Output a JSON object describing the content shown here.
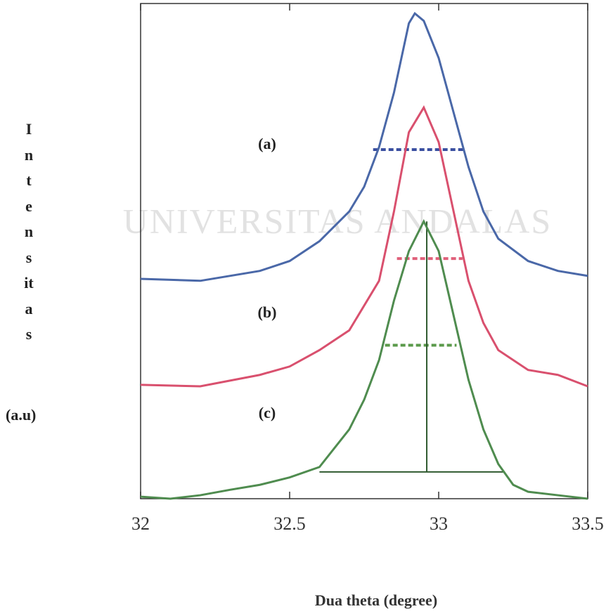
{
  "chart_data": {
    "type": "line",
    "x_label": "Dua theta (degree)",
    "y_label": "Intensitas",
    "y_label_unit": "(a.u)",
    "watermark": "UNIVERSITAS ANDALAS",
    "xlim": [
      32,
      33.5
    ],
    "xticks": [
      32,
      32.5,
      33,
      33.5
    ],
    "ylim": [
      0,
      100
    ],
    "annotations": [
      "(a)",
      "(b)",
      "(c)"
    ],
    "series": [
      {
        "name": "(a)",
        "color": "#4a68a8",
        "x": [
          32,
          32.2,
          32.4,
          32.5,
          32.6,
          32.7,
          32.75,
          32.8,
          32.85,
          32.9,
          32.92,
          32.95,
          33.0,
          33.05,
          33.1,
          33.15,
          33.2,
          33.3,
          33.4,
          33.5
        ],
        "values": [
          44.4,
          44,
          46,
          48,
          52,
          58,
          63,
          71,
          82,
          96,
          98,
          96.5,
          89,
          78,
          67,
          58,
          52.5,
          48,
          46,
          45
        ]
      },
      {
        "name": "(b)",
        "color": "#d9506e",
        "x": [
          32,
          32.2,
          32.4,
          32.5,
          32.6,
          32.7,
          32.8,
          32.85,
          32.9,
          32.95,
          33.0,
          33.05,
          33.1,
          33.15,
          33.2,
          33.3,
          33.4,
          33.5
        ],
        "values": [
          23,
          22.7,
          25,
          26.7,
          30,
          34,
          44,
          58,
          74,
          79,
          72,
          58,
          44,
          35.5,
          30,
          26,
          25,
          22.7
        ]
      },
      {
        "name": "(c)",
        "color": "#4f8c4f",
        "x": [
          32,
          32.1,
          32.2,
          32.3,
          32.4,
          32.5,
          32.6,
          32.7,
          32.75,
          32.8,
          32.85,
          32.9,
          32.95,
          33.0,
          33.05,
          33.1,
          33.15,
          33.2,
          33.25,
          33.3,
          33.4,
          33.5
        ],
        "values": [
          0.4,
          0,
          0.7,
          1.8,
          2.8,
          4.3,
          6.4,
          14,
          20,
          28,
          40,
          50,
          56,
          50,
          37,
          24,
          14,
          7,
          2.8,
          1.4,
          0.7,
          0
        ]
      }
    ],
    "guide_lines": [
      {
        "color": "#3a4fa0",
        "dashed": true,
        "x": [
          32.78,
          33.09
        ],
        "y": [
          70.5,
          70.5
        ]
      },
      {
        "color": "#e0607a",
        "dashed": true,
        "x": [
          32.86,
          33.08
        ],
        "y": [
          48.5,
          48.5
        ]
      },
      {
        "color": "#5a9a4a",
        "dashed": true,
        "x": [
          32.82,
          33.06
        ],
        "y": [
          31,
          31
        ]
      },
      {
        "color": "#2f5a2f",
        "dashed": false,
        "x": [
          32.6,
          33.22
        ],
        "y": [
          5.4,
          5.4
        ]
      },
      {
        "color": "#2f5a2f",
        "dashed": false,
        "x": [
          32.96,
          32.96
        ],
        "y": [
          5.4,
          56
        ]
      }
    ]
  }
}
